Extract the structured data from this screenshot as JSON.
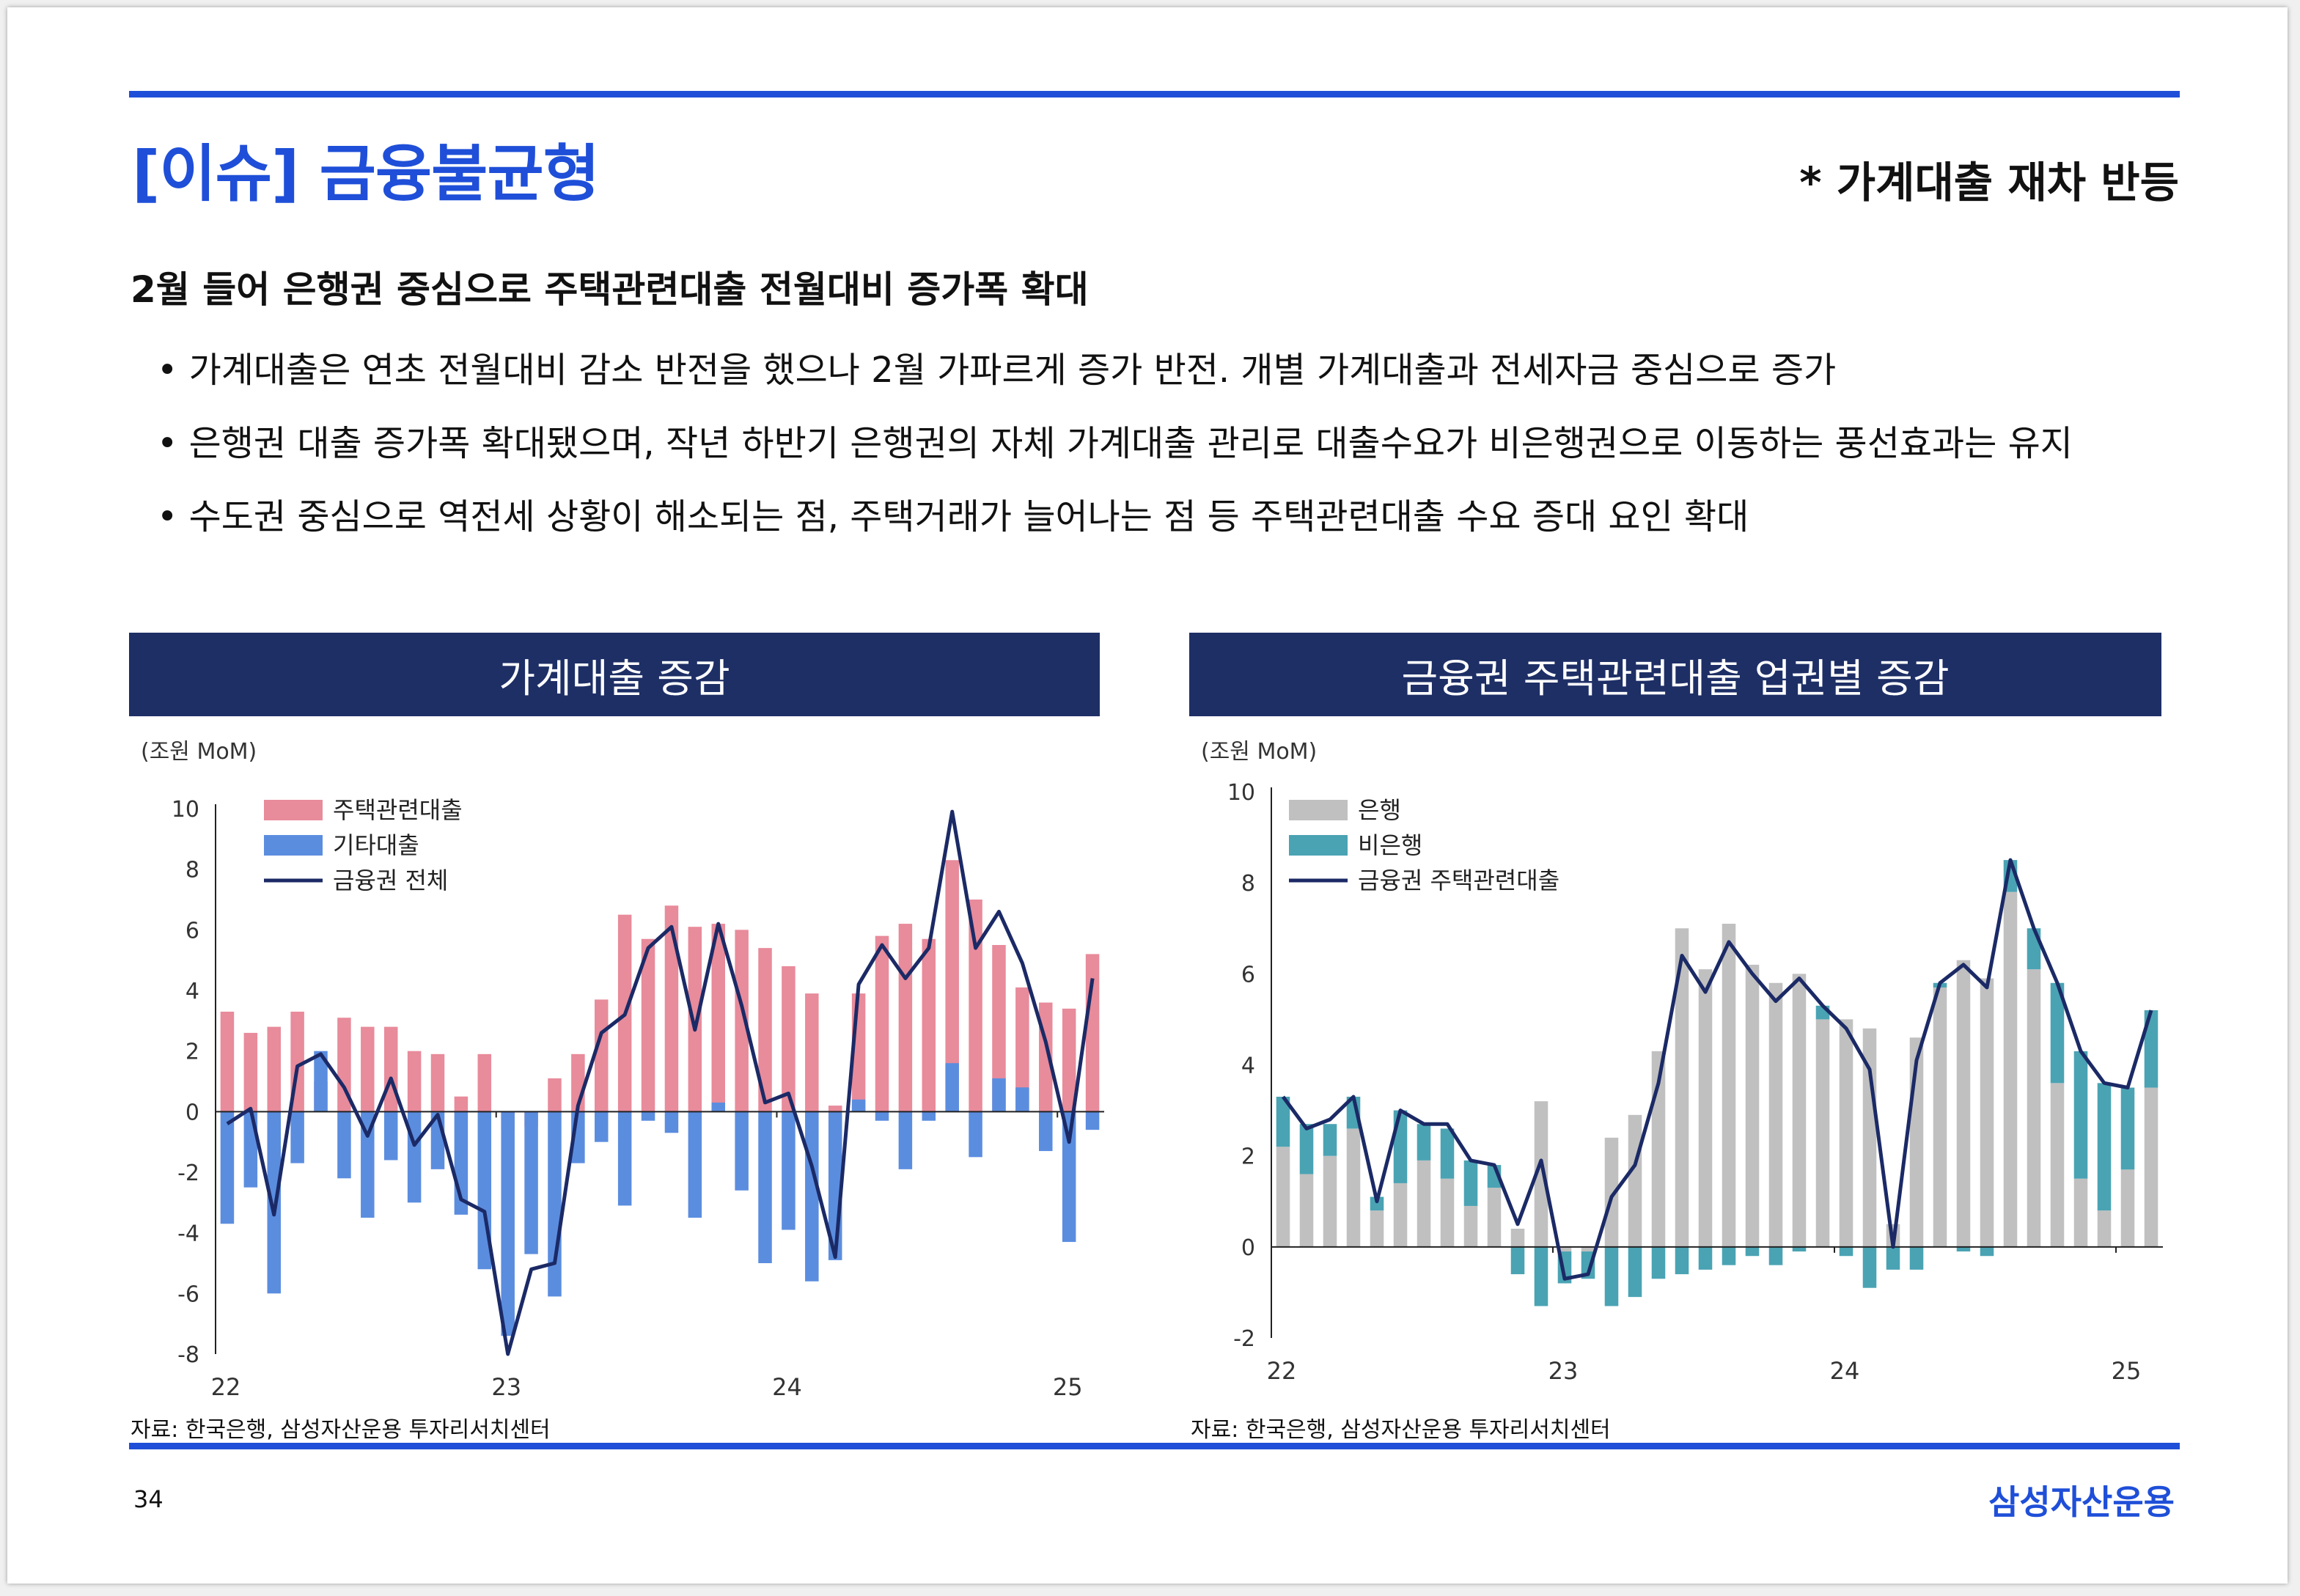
{
  "header": {
    "title": "[이슈] 금융불균형",
    "subtitle": "* 가계대출 재차 반등"
  },
  "summary": {
    "headline": "2월 들어 은행권 중심으로 주택관련대출 전월대비 증가폭 확대",
    "bullets": [
      "가계대출은 연초 전월대비 감소 반전을 했으나 2월 가파르게 증가 반전. 개별 가계대출과 전세자금 중심으로 증가",
      "은행권 대출 증가폭 확대됐으며, 작년 하반기 은행권의 자체 가계대출 관리로 대출수요가 비은행권으로 이동하는 풍선효과는 유지",
      "수도권 중심으로 역전세 상황이 해소되는 점, 주택거래가 늘어나는 점 등 주택관련대출 수요 증대 요인 확대"
    ]
  },
  "colors": {
    "accent": "#1f4fd8",
    "header_bg": "#1e2f66",
    "pink": "#e88b9b",
    "blue": "#5b8ddf",
    "gray": "#c0c0c0",
    "teal": "#4aa3b3",
    "line": "#1b2a66"
  },
  "chart_data": [
    {
      "type": "bar",
      "title": "가계대출 증감",
      "unit_label": "(조원 MoM)",
      "x": [
        "22.01",
        "22.02",
        "22.03",
        "22.04",
        "22.05",
        "22.06",
        "22.07",
        "22.08",
        "22.09",
        "22.10",
        "22.11",
        "22.12",
        "23.01",
        "23.02",
        "23.03",
        "23.04",
        "23.05",
        "23.06",
        "23.07",
        "23.08",
        "23.09",
        "23.10",
        "23.11",
        "23.12",
        "24.01",
        "24.02",
        "24.03",
        "24.04",
        "24.05",
        "24.06",
        "24.07",
        "24.08",
        "24.09",
        "24.10",
        "24.11",
        "24.12",
        "25.01",
        "25.02"
      ],
      "x_ticks": [
        "22",
        "23",
        "24",
        "25"
      ],
      "ylim": [
        -8,
        10
      ],
      "y_ticks": [
        "10",
        "8",
        "6",
        "4",
        "2",
        "0",
        "-2",
        "-4",
        "-6",
        "-8"
      ],
      "legend": [
        "주택관련대출",
        "기타대출",
        "금융권 전체"
      ],
      "series": [
        {
          "name": "주택관련대출",
          "kind": "bar",
          "values": [
            3.3,
            2.6,
            2.8,
            3.3,
            1.0,
            3.1,
            2.8,
            2.8,
            2.0,
            1.9,
            0.5,
            1.9,
            -0.6,
            -0.5,
            1.1,
            1.9,
            3.7,
            6.5,
            5.7,
            6.8,
            6.1,
            6.2,
            6.0,
            5.4,
            4.8,
            3.9,
            0.2,
            3.9,
            5.8,
            6.2,
            5.7,
            8.3,
            7.0,
            5.5,
            4.1,
            3.6,
            3.4,
            5.2
          ]
        },
        {
          "name": "기타대출",
          "kind": "bar",
          "values": [
            -3.7,
            -2.5,
            -6.0,
            -1.7,
            2.0,
            -2.2,
            -3.5,
            -1.6,
            -3.0,
            -1.9,
            -3.4,
            -5.2,
            -7.4,
            -4.7,
            -6.1,
            -1.7,
            -1.0,
            -3.1,
            -0.3,
            -0.7,
            -3.5,
            0.3,
            -2.6,
            -5.0,
            -3.9,
            -5.6,
            -4.9,
            0.4,
            -0.3,
            -1.9,
            -0.3,
            1.6,
            -1.5,
            1.1,
            0.8,
            -1.3,
            -4.3,
            -0.6
          ]
        },
        {
          "name": "금융권 전체",
          "kind": "line",
          "values": [
            -0.4,
            0.1,
            -3.4,
            1.5,
            1.9,
            0.8,
            -0.8,
            1.1,
            -1.1,
            -0.1,
            -2.9,
            -3.3,
            -8.0,
            -5.2,
            -5.0,
            0.2,
            2.6,
            3.2,
            5.4,
            6.1,
            2.7,
            6.2,
            3.5,
            0.3,
            0.6,
            -1.8,
            -4.8,
            4.2,
            5.5,
            4.4,
            5.4,
            9.9,
            5.4,
            6.6,
            4.9,
            2.3,
            -1.0,
            4.4
          ]
        }
      ]
    },
    {
      "type": "bar",
      "title": "금융권 주택관련대출 업권별 증감",
      "unit_label": "(조원 MoM)",
      "x": [
        "22.01",
        "22.02",
        "22.03",
        "22.04",
        "22.05",
        "22.06",
        "22.07",
        "22.08",
        "22.09",
        "22.10",
        "22.11",
        "22.12",
        "23.01",
        "23.02",
        "23.03",
        "23.04",
        "23.05",
        "23.06",
        "23.07",
        "23.08",
        "23.09",
        "23.10",
        "23.11",
        "23.12",
        "24.01",
        "24.02",
        "24.03",
        "24.04",
        "24.05",
        "24.06",
        "24.07",
        "24.08",
        "24.09",
        "24.10",
        "24.11",
        "24.12",
        "25.01",
        "25.02"
      ],
      "x_ticks": [
        "22",
        "23",
        "24",
        "25"
      ],
      "ylim": [
        -2,
        10
      ],
      "y_ticks": [
        "10",
        "8",
        "6",
        "4",
        "2",
        "0",
        "-2"
      ],
      "legend": [
        "은행",
        "비은행",
        "금융권 주택관련대출"
      ],
      "series": [
        {
          "name": "은행",
          "kind": "bar",
          "values": [
            2.2,
            1.6,
            2.0,
            2.6,
            0.8,
            1.4,
            1.9,
            1.5,
            0.9,
            1.3,
            0.4,
            3.2,
            -0.1,
            -0.1,
            2.4,
            2.9,
            4.3,
            7.0,
            6.1,
            7.1,
            6.2,
            5.8,
            6.0,
            5.0,
            5.0,
            4.8,
            0.5,
            4.6,
            5.7,
            6.3,
            5.9,
            7.8,
            6.1,
            3.6,
            1.5,
            0.8,
            1.7,
            3.5
          ]
        },
        {
          "name": "비은행",
          "kind": "bar",
          "values": [
            1.1,
            1.1,
            0.7,
            0.7,
            0.3,
            1.6,
            0.8,
            1.1,
            1.0,
            0.5,
            -0.6,
            -1.3,
            -0.7,
            -0.6,
            -1.3,
            -1.1,
            -0.7,
            -0.6,
            -0.5,
            -0.4,
            -0.2,
            -0.4,
            -0.1,
            0.3,
            -0.2,
            -0.9,
            -0.5,
            -0.5,
            0.1,
            -0.1,
            -0.2,
            0.7,
            0.9,
            2.2,
            2.8,
            2.8,
            1.8,
            1.7
          ]
        },
        {
          "name": "금융권 주택관련대출",
          "kind": "line",
          "values": [
            3.3,
            2.6,
            2.8,
            3.3,
            1.0,
            3.0,
            2.7,
            2.7,
            1.9,
            1.8,
            0.5,
            1.9,
            -0.7,
            -0.6,
            1.1,
            1.8,
            3.6,
            6.4,
            5.6,
            6.7,
            6.0,
            5.4,
            5.9,
            5.3,
            4.8,
            3.9,
            0.0,
            4.1,
            5.8,
            6.2,
            5.7,
            8.5,
            7.0,
            5.8,
            4.3,
            3.6,
            3.5,
            5.2
          ]
        }
      ]
    }
  ],
  "footer": {
    "source_left": "자료: 한국은행, 삼성자산운용 투자리서치센터",
    "source_right": "자료: 한국은행, 삼성자산운용 투자리서치센터",
    "page_number": "34",
    "brand": "삼성자산운용"
  }
}
